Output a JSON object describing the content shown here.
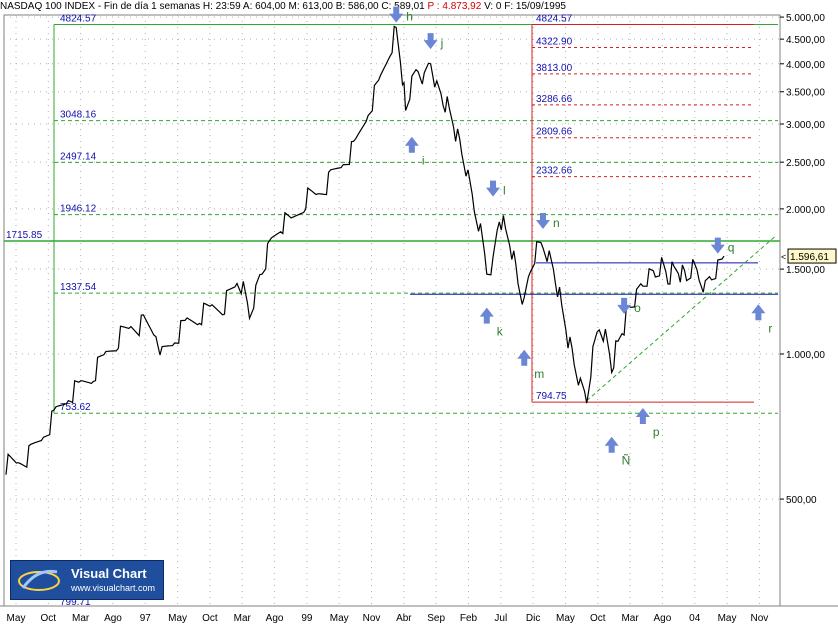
{
  "header": {
    "symbol": "NASDAQ 100 INDEX - Fin de día 1 semanas",
    "h_label": "H: 23:59",
    "a_label": "A: 604,00",
    "m_label": "M: 613,00",
    "b_label": "B: 586,00",
    "c_label": "C: 589,01",
    "p_label": "P : 4.873,92",
    "v_label": "V: 0",
    "f_label": "F: 15/09/1995"
  },
  "logo": {
    "title": "Visual Chart",
    "url": "www.visualchart.com"
  },
  "colors": {
    "price": "#000000",
    "green_lines": "#2fa82f",
    "fib_red": "#d42020",
    "blue_lines": "#1010b0",
    "arrows": "#6c86d6",
    "letters": "#2f7d2f",
    "last_price_box": "#fff8c8"
  },
  "chart_data": {
    "type": "line",
    "title": "NASDAQ 100 INDEX - Fin de día 1 semanas",
    "x_axis_months": [
      "May",
      "Oct",
      "Mar",
      "Ago",
      "97",
      "May",
      "Oct",
      "Mar",
      "Ago",
      "99",
      "May",
      "Nov",
      "Abr",
      "Sep",
      "Feb",
      "Jul",
      "Dic",
      "May",
      "Oct",
      "Mar",
      "Ago",
      "04",
      "May",
      "Nov"
    ],
    "y_ticks": [
      "500,00",
      "1.000,00",
      "1.500,00",
      "2.000,00",
      "2.500,00",
      "3.000,00",
      "3.500,00",
      "4.000,00",
      "4.500,00",
      "5.000,00"
    ],
    "y_tick_values": [
      500,
      1000,
      1500,
      2000,
      2500,
      3000,
      3500,
      4000,
      4500,
      5000
    ],
    "ylim": [
      300,
      5050
    ],
    "y_log": true,
    "last_price": "1.596,61",
    "bottom_level_label": "799.71",
    "price_path": [
      [
        0,
        590
      ],
      [
        4,
        595
      ],
      [
        8,
        620
      ],
      [
        12,
        680
      ],
      [
        16,
        750
      ],
      [
        20,
        820
      ],
      [
        24,
        860
      ],
      [
        28,
        910
      ],
      [
        32,
        1000
      ],
      [
        36,
        1080
      ],
      [
        40,
        1140
      ],
      [
        44,
        1150
      ],
      [
        48,
        1100
      ],
      [
        50,
        1000
      ],
      [
        54,
        1080
      ],
      [
        58,
        1160
      ],
      [
        62,
        1200
      ],
      [
        66,
        1250
      ],
      [
        70,
        1270
      ],
      [
        74,
        1400
      ],
      [
        76,
        1350
      ],
      [
        78,
        1200
      ],
      [
        80,
        1340
      ],
      [
        82,
        1500
      ],
      [
        85,
        1700
      ],
      [
        88,
        1860
      ],
      [
        92,
        1900
      ],
      [
        96,
        2100
      ],
      [
        100,
        2150
      ],
      [
        104,
        2300
      ],
      [
        108,
        2500
      ],
      [
        112,
        2700
      ],
      [
        116,
        3200
      ],
      [
        120,
        3700
      ],
      [
        123,
        4300
      ],
      [
        125,
        4700
      ],
      [
        127,
        3800
      ],
      [
        128,
        3200
      ],
      [
        130,
        3600
      ],
      [
        132,
        3900
      ],
      [
        134,
        3700
      ],
      [
        136,
        4100
      ],
      [
        138,
        3600
      ],
      [
        140,
        3400
      ],
      [
        142,
        3200
      ],
      [
        144,
        2900
      ],
      [
        146,
        2600
      ],
      [
        148,
        2300
      ],
      [
        150,
        2000
      ],
      [
        152,
        1800
      ],
      [
        154,
        1500
      ],
      [
        156,
        1550
      ],
      [
        158,
        1950
      ],
      [
        160,
        1800
      ],
      [
        162,
        1650
      ],
      [
        164,
        1400
      ],
      [
        166,
        1250
      ],
      [
        168,
        1500
      ],
      [
        170,
        1650
      ],
      [
        172,
        1700
      ],
      [
        174,
        1600
      ],
      [
        176,
        1450
      ],
      [
        178,
        1250
      ],
      [
        180,
        1080
      ],
      [
        182,
        950
      ],
      [
        184,
        850
      ],
      [
        186,
        800
      ],
      [
        188,
        1000
      ],
      [
        190,
        1150
      ],
      [
        192,
        1100
      ],
      [
        194,
        950
      ],
      [
        196,
        1050
      ],
      [
        198,
        1150
      ],
      [
        200,
        1250
      ],
      [
        202,
        1300
      ],
      [
        204,
        1400
      ],
      [
        206,
        1450
      ],
      [
        208,
        1480
      ],
      [
        210,
        1550
      ],
      [
        212,
        1450
      ],
      [
        214,
        1500
      ],
      [
        216,
        1480
      ],
      [
        218,
        1420
      ],
      [
        220,
        1500
      ],
      [
        222,
        1440
      ],
      [
        224,
        1370
      ],
      [
        226,
        1460
      ],
      [
        228,
        1530
      ],
      [
        230,
        1596
      ]
    ],
    "horizontal_levels": [
      {
        "label": "4824.57",
        "value": 4824.57,
        "color": "green",
        "style": "solid"
      },
      {
        "label": "3048.16",
        "value": 3048.16,
        "color": "green",
        "style": "dashed"
      },
      {
        "label": "2497.14",
        "value": 2497.14,
        "color": "green",
        "style": "dashed"
      },
      {
        "label": "1946.12",
        "value": 1946.12,
        "color": "green",
        "style": "dashed"
      },
      {
        "label": "1715.85",
        "value": 1715.85,
        "color": "green",
        "style": "solid"
      },
      {
        "label": "1337.54",
        "value": 1337.54,
        "color": "green",
        "style": "dashed"
      },
      {
        "label": "753.62",
        "value": 753.62,
        "color": "green",
        "style": "dashed"
      }
    ],
    "fib_levels": [
      {
        "label": "4824.57",
        "value": 4824.57,
        "style": "solid"
      },
      {
        "label": "4322.90",
        "value": 4322.9,
        "style": "dashed"
      },
      {
        "label": "3813.00",
        "value": 3813.0,
        "style": "dashed"
      },
      {
        "label": "3286.66",
        "value": 3286.66,
        "style": "dashed"
      },
      {
        "label": "2809.66",
        "value": 2809.66,
        "style": "dashed"
      },
      {
        "label": "2332.66",
        "value": 2332.66,
        "style": "dashed"
      },
      {
        "label": "794.75",
        "value": 794.75,
        "style": "solid"
      }
    ],
    "blue_levels": [
      1545,
      1330
    ],
    "annotations": [
      {
        "letter": "h",
        "x": 125,
        "value": 4824,
        "arrow": "down"
      },
      {
        "letter": "j",
        "x": 136,
        "value": 4250,
        "arrow": "down"
      },
      {
        "letter": "i",
        "x": 130,
        "value": 2850,
        "arrow": "up"
      },
      {
        "letter": "l",
        "x": 156,
        "value": 2100,
        "arrow": "down"
      },
      {
        "letter": "k",
        "x": 154,
        "value": 1260,
        "arrow": "up"
      },
      {
        "letter": "n",
        "x": 172,
        "value": 1800,
        "arrow": "down"
      },
      {
        "letter": "m",
        "x": 166,
        "value": 1030,
        "arrow": "up"
      },
      {
        "letter": "o",
        "x": 198,
        "value": 1200,
        "arrow": "down"
      },
      {
        "letter": "Ñ",
        "x": 194,
        "value": 680,
        "arrow": "up"
      },
      {
        "letter": "p",
        "x": 204,
        "value": 780,
        "arrow": "up"
      },
      {
        "letter": "q",
        "x": 228,
        "value": 1600,
        "arrow": "down"
      },
      {
        "letter": "r",
        "x": 241,
        "value": 1280,
        "arrow": "up"
      }
    ]
  }
}
